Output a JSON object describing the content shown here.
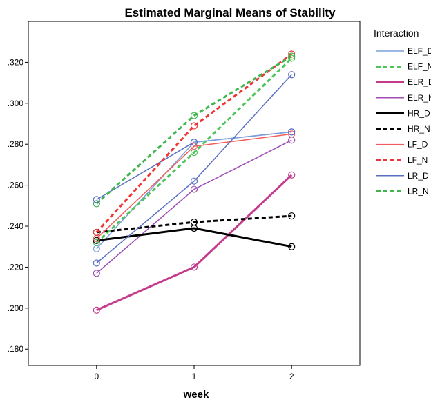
{
  "chart_data": {
    "type": "line",
    "title": "Estimated Marginal Means of Stability",
    "xlabel": "week",
    "ylabel": "",
    "x": [
      0,
      1,
      2
    ],
    "xlim": [
      -0.7,
      2.7
    ],
    "ylim": [
      0.172,
      0.34
    ],
    "yticks": [
      ".180",
      ".200",
      ".220",
      ".240",
      ".260",
      ".280",
      ".300",
      ".320"
    ],
    "ytick_values": [
      0.18,
      0.2,
      0.22,
      0.24,
      0.26,
      0.28,
      0.3,
      0.32
    ],
    "xticks": [
      "0",
      "1",
      "2"
    ],
    "grid": false,
    "legend_title": "Interaction",
    "legend_position": "right",
    "series": [
      {
        "name": "ELF_D",
        "values": [
          0.229,
          0.281,
          0.286
        ],
        "color": "#7a9fdc",
        "dash": false,
        "width": "thin"
      },
      {
        "name": "ELF_N",
        "values": [
          0.232,
          0.276,
          0.322
        ],
        "color": "#4cc55a",
        "dash": true,
        "width": "thick"
      },
      {
        "name": "ELR_D",
        "values": [
          0.199,
          0.22,
          0.265
        ],
        "color": "#c43a8c",
        "dash": false,
        "width": "thick"
      },
      {
        "name": "ELR_N",
        "values": [
          0.217,
          0.258,
          0.282
        ],
        "color": "#a04db5",
        "dash": false,
        "width": "thin"
      },
      {
        "name": "HR_D",
        "values": [
          0.233,
          0.239,
          0.23
        ],
        "color": "#000000",
        "dash": false,
        "width": "thick"
      },
      {
        "name": "HR_N",
        "values": [
          0.237,
          0.242,
          0.245
        ],
        "color": "#000000",
        "dash": true,
        "width": "thick"
      },
      {
        "name": "LF_D",
        "values": [
          0.234,
          0.279,
          0.285
        ],
        "color": "#f35c5c",
        "dash": false,
        "width": "thin"
      },
      {
        "name": "LF_N",
        "values": [
          0.237,
          0.289,
          0.324
        ],
        "color": "#f03535",
        "dash": true,
        "width": "thick"
      },
      {
        "name": "LR_D",
        "values": [
          0.222,
          0.262,
          0.314
        ],
        "color": "#5a6fc4",
        "dash": false,
        "width": "thin"
      },
      {
        "name": "LR_N",
        "values": [
          0.251,
          0.294,
          0.323
        ],
        "color": "#3fb54f",
        "dash": true,
        "width": "thick"
      }
    ],
    "extra_series": [
      {
        "values": [
          0.253,
          0.281,
          0.286
        ],
        "color": "#5a6fc4",
        "dash": false,
        "width": "thin"
      }
    ],
    "marker_ring_colors": {
      "0": [
        "#f0b0a0",
        "#4cc55a",
        "#3fb54f",
        "#7a9fdc",
        "#f03535",
        "#5a6fc4",
        "#a04db5",
        "#5a6fc4",
        "#b0b0b0"
      ],
      "1": [
        "#7ab8e8",
        "#4cc55a",
        "#f03535",
        "#4cc55a",
        "#5a6fc4",
        "#a04db5",
        "#f03535",
        "#d4d48a",
        "#f0a0a0"
      ],
      "2": [
        "#c8c8c8",
        "#f03535",
        "#4cc55a",
        "#4cc55a",
        "#5a6fc4",
        "#7ab8e8",
        "#a04db5",
        "#e0c8a0",
        "#f03535",
        "#e8e890"
      ]
    }
  }
}
